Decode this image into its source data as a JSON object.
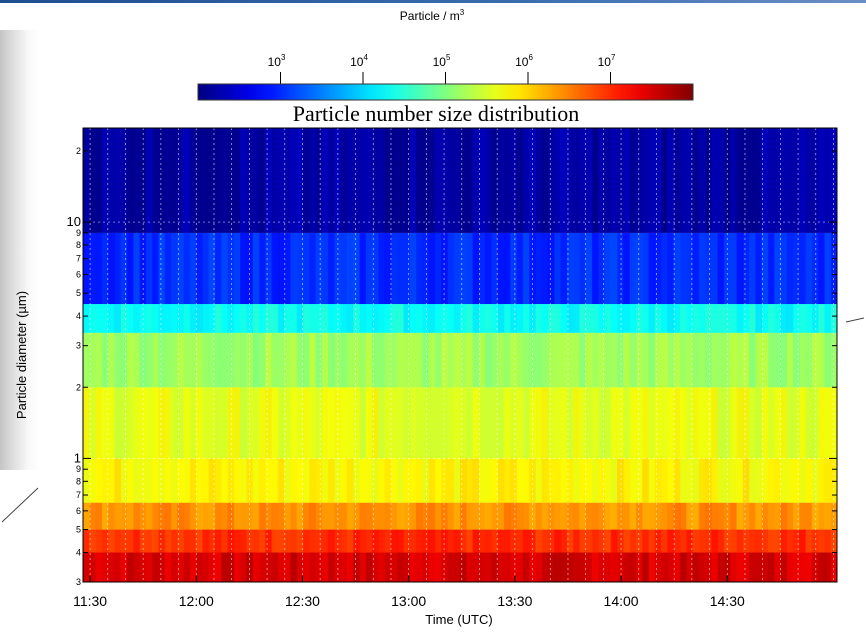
{
  "chart_data": {
    "type": "heatmap",
    "title": "Particle number size distribution",
    "xlabel": "Time (UTC)",
    "ylabel": "Particle diameter (µm)",
    "colorbar": {
      "label_main": "Particle / m",
      "label_sup": "3",
      "scale": "log",
      "range": [
        100,
        100000000
      ],
      "ticks": [
        {
          "base": "10",
          "exp": "3",
          "value": 1000
        },
        {
          "base": "10",
          "exp": "4",
          "value": 10000
        },
        {
          "base": "10",
          "exp": "5",
          "value": 100000
        },
        {
          "base": "10",
          "exp": "6",
          "value": 1000000
        },
        {
          "base": "10",
          "exp": "7",
          "value": 10000000
        }
      ],
      "colormap": "jet"
    },
    "x": {
      "range": [
        "11:28",
        "15:01"
      ],
      "ticks": [
        "11:30",
        "12:00",
        "12:30",
        "13:00",
        "13:30",
        "14:00",
        "14:30"
      ]
    },
    "y": {
      "scale": "log",
      "unit_note": "axis labels as printed",
      "range": [
        0.3,
        25
      ],
      "ticks_labeled": [
        {
          "label": "3",
          "value": 0.3
        },
        {
          "label": "4",
          "value": 0.4
        },
        {
          "label": "5",
          "value": 0.5
        },
        {
          "label": "6",
          "value": 0.6
        },
        {
          "label": "7",
          "value": 0.7
        },
        {
          "label": "8",
          "value": 0.8
        },
        {
          "label": "9",
          "value": 0.9
        },
        {
          "label": "1",
          "value": 1
        },
        {
          "label": "2",
          "value": 2
        },
        {
          "label": "3",
          "value": 3
        },
        {
          "label": "4",
          "value": 4
        },
        {
          "label": "5",
          "value": 5
        },
        {
          "label": "6",
          "value": 6
        },
        {
          "label": "7",
          "value": 7
        },
        {
          "label": "8",
          "value": 8
        },
        {
          "label": "9",
          "value": 9
        },
        {
          "label": "10",
          "value": 10
        },
        {
          "label": "2",
          "value": 20
        }
      ]
    },
    "bands": [
      {
        "d_min": 0.3,
        "d_max": 0.4,
        "log10_concentration": 7.5
      },
      {
        "d_min": 0.4,
        "d_max": 0.5,
        "log10_concentration": 7.0
      },
      {
        "d_min": 0.5,
        "d_max": 0.65,
        "log10_concentration": 6.4
      },
      {
        "d_min": 0.65,
        "d_max": 1.0,
        "log10_concentration": 5.8
      },
      {
        "d_min": 1.0,
        "d_max": 2.0,
        "log10_concentration": 5.6
      },
      {
        "d_min": 2.0,
        "d_max": 3.4,
        "log10_concentration": 5.2
      },
      {
        "d_min": 3.4,
        "d_max": 4.5,
        "log10_concentration": 4.3
      },
      {
        "d_min": 4.5,
        "d_max": 9.0,
        "log10_concentration": 3.0
      },
      {
        "d_min": 9.0,
        "d_max": 25,
        "log10_concentration": 2.2
      }
    ],
    "grid": true
  }
}
